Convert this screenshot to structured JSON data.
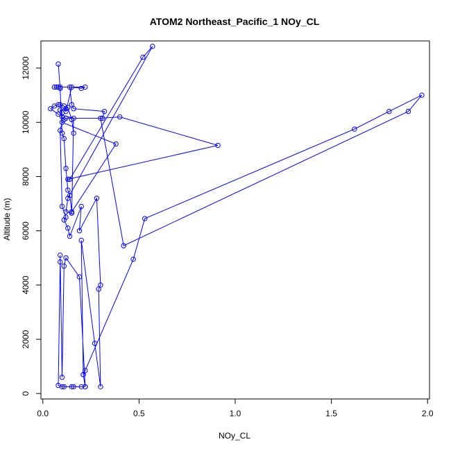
{
  "chart_data": {
    "type": "line",
    "title": "ATOM2 Northeast_Pacific_1 NOy_CL",
    "xlabel": "NOy_CL",
    "ylabel": "Altitude (m)",
    "xlim": [
      -0.01,
      2.01
    ],
    "ylim": [
      -200,
      13000
    ],
    "x_ticks": [
      0.0,
      0.5,
      1.0,
      1.5,
      2.0
    ],
    "x_tick_labels": [
      "0.0",
      "0.5",
      "1.0",
      "1.5",
      "2.0"
    ],
    "y_ticks": [
      0,
      2000,
      4000,
      6000,
      8000,
      10000,
      12000
    ],
    "y_tick_labels": [
      "0",
      "2000",
      "4000",
      "6000",
      "8000",
      "10000",
      "12000"
    ],
    "grid": false,
    "marker": "open-circle",
    "series_color": "#0000ff",
    "series": [
      {
        "x": [
          0.08,
          0.09,
          0.1,
          0.11,
          0.12,
          0.13,
          0.14,
          0.15,
          0.38,
          0.1,
          0.09,
          0.1,
          0.12,
          0.11,
          0.13,
          0.14,
          0.2,
          0.19,
          0.28,
          0.3,
          0.29,
          0.3,
          0.27,
          0.2,
          0.21,
          0.22,
          0.19,
          0.12,
          0.11,
          0.1,
          0.09,
          0.09,
          0.08,
          0.1,
          0.11,
          0.15,
          0.16,
          0.2,
          0.22,
          0.21,
          0.22,
          0.47,
          0.53,
          1.62,
          1.8,
          1.97,
          1.9,
          0.42,
          0.3,
          0.4,
          0.91,
          0.13,
          0.14,
          0.52,
          0.57,
          0.13,
          0.12,
          0.15,
          0.16,
          0.08,
          0.04,
          0.06,
          0.08,
          0.09,
          0.11,
          0.12,
          0.15,
          0.2,
          0.22,
          0.06,
          0.07,
          0.08,
          0.09,
          0.14,
          0.15,
          0.16,
          0.32,
          0.31,
          0.12,
          0.11,
          0.1,
          0.1,
          0.09,
          0.12,
          0.13,
          0.15,
          0.16
        ],
        "y": [
          12150,
          11250,
          9600,
          9400,
          8300,
          7500,
          7300,
          6700,
          9200,
          10000,
          9700,
          6900,
          6500,
          6400,
          6100,
          5800,
          6900,
          6000,
          7200,
          4000,
          3850,
          250,
          1850,
          5650,
          700,
          250,
          4300,
          5000,
          4700,
          600,
          5100,
          4850,
          300,
          250,
          250,
          250,
          250,
          250,
          250,
          700,
          850,
          4950,
          6450,
          9750,
          10400,
          11000,
          10400,
          5450,
          10150,
          10200,
          9150,
          7900,
          7900,
          12400,
          12800,
          7200,
          6700,
          6650,
          10150,
          10300,
          10500,
          10600,
          10650,
          10650,
          10600,
          10400,
          11300,
          11250,
          11300,
          11300,
          11300,
          11300,
          11300,
          11300,
          10650,
          10500,
          10400,
          10150,
          10150,
          10100,
          10200,
          10350,
          10450,
          10500,
          10550,
          10100,
          9600
        ]
      }
    ]
  }
}
